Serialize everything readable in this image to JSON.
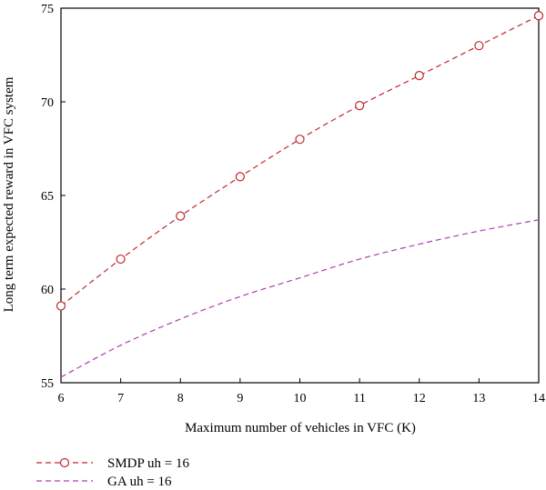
{
  "chart_data": {
    "type": "line",
    "title": "",
    "xlabel": "Maximum number of vehicles in VFC (K)",
    "ylabel": "Long term expected reward in VFC system",
    "xlim": [
      6,
      14
    ],
    "ylim": [
      55,
      75
    ],
    "xticks": [
      6,
      7,
      8,
      9,
      10,
      11,
      12,
      13,
      14
    ],
    "yticks": [
      55,
      60,
      65,
      70,
      75
    ],
    "grid": false,
    "legend": "bottom-left",
    "series": [
      {
        "name": "SMDP uh = 16",
        "color": "#c0282d",
        "style": "dashed",
        "marker": "circle",
        "x": [
          6,
          7,
          8,
          9,
          10,
          11,
          12,
          13,
          14
        ],
        "y": [
          59.1,
          61.6,
          63.9,
          66.0,
          68.0,
          69.8,
          71.4,
          73.0,
          74.6
        ]
      },
      {
        "name": "GA uh = 16",
        "color": "#b03cb4",
        "style": "dashed",
        "marker": "none",
        "x": [
          6,
          7,
          8,
          9,
          10,
          11,
          12,
          13,
          14
        ],
        "y": [
          55.3,
          57.0,
          58.4,
          59.6,
          60.6,
          61.6,
          62.4,
          63.1,
          63.7
        ]
      }
    ]
  }
}
